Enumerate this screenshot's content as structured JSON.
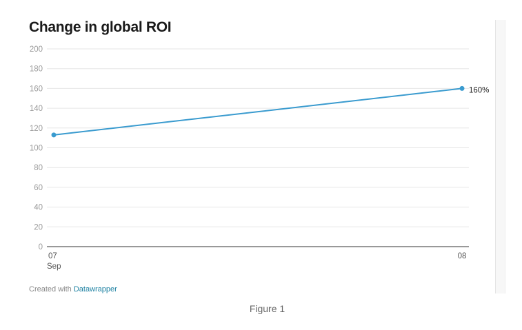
{
  "chart_data": {
    "type": "line",
    "title": "Change in global ROI",
    "xlabel": "",
    "ylabel": "",
    "x": [
      "07 Sep",
      "08 Sep"
    ],
    "x_tick_labels": [
      {
        "line1": "07",
        "line2": "Sep"
      },
      {
        "line1": "08",
        "line2": ""
      }
    ],
    "series": [
      {
        "values": [
          113,
          160
        ],
        "color": "#3a9bcf"
      }
    ],
    "end_label": "160%",
    "ylim": [
      0,
      200
    ],
    "yticks": [
      0,
      20,
      40,
      60,
      80,
      100,
      120,
      140,
      160,
      180,
      200
    ],
    "grid": true,
    "legend": "none"
  },
  "credit": {
    "prefix": "Created with",
    "link_text": "Datawrapper"
  },
  "caption": "Figure 1"
}
